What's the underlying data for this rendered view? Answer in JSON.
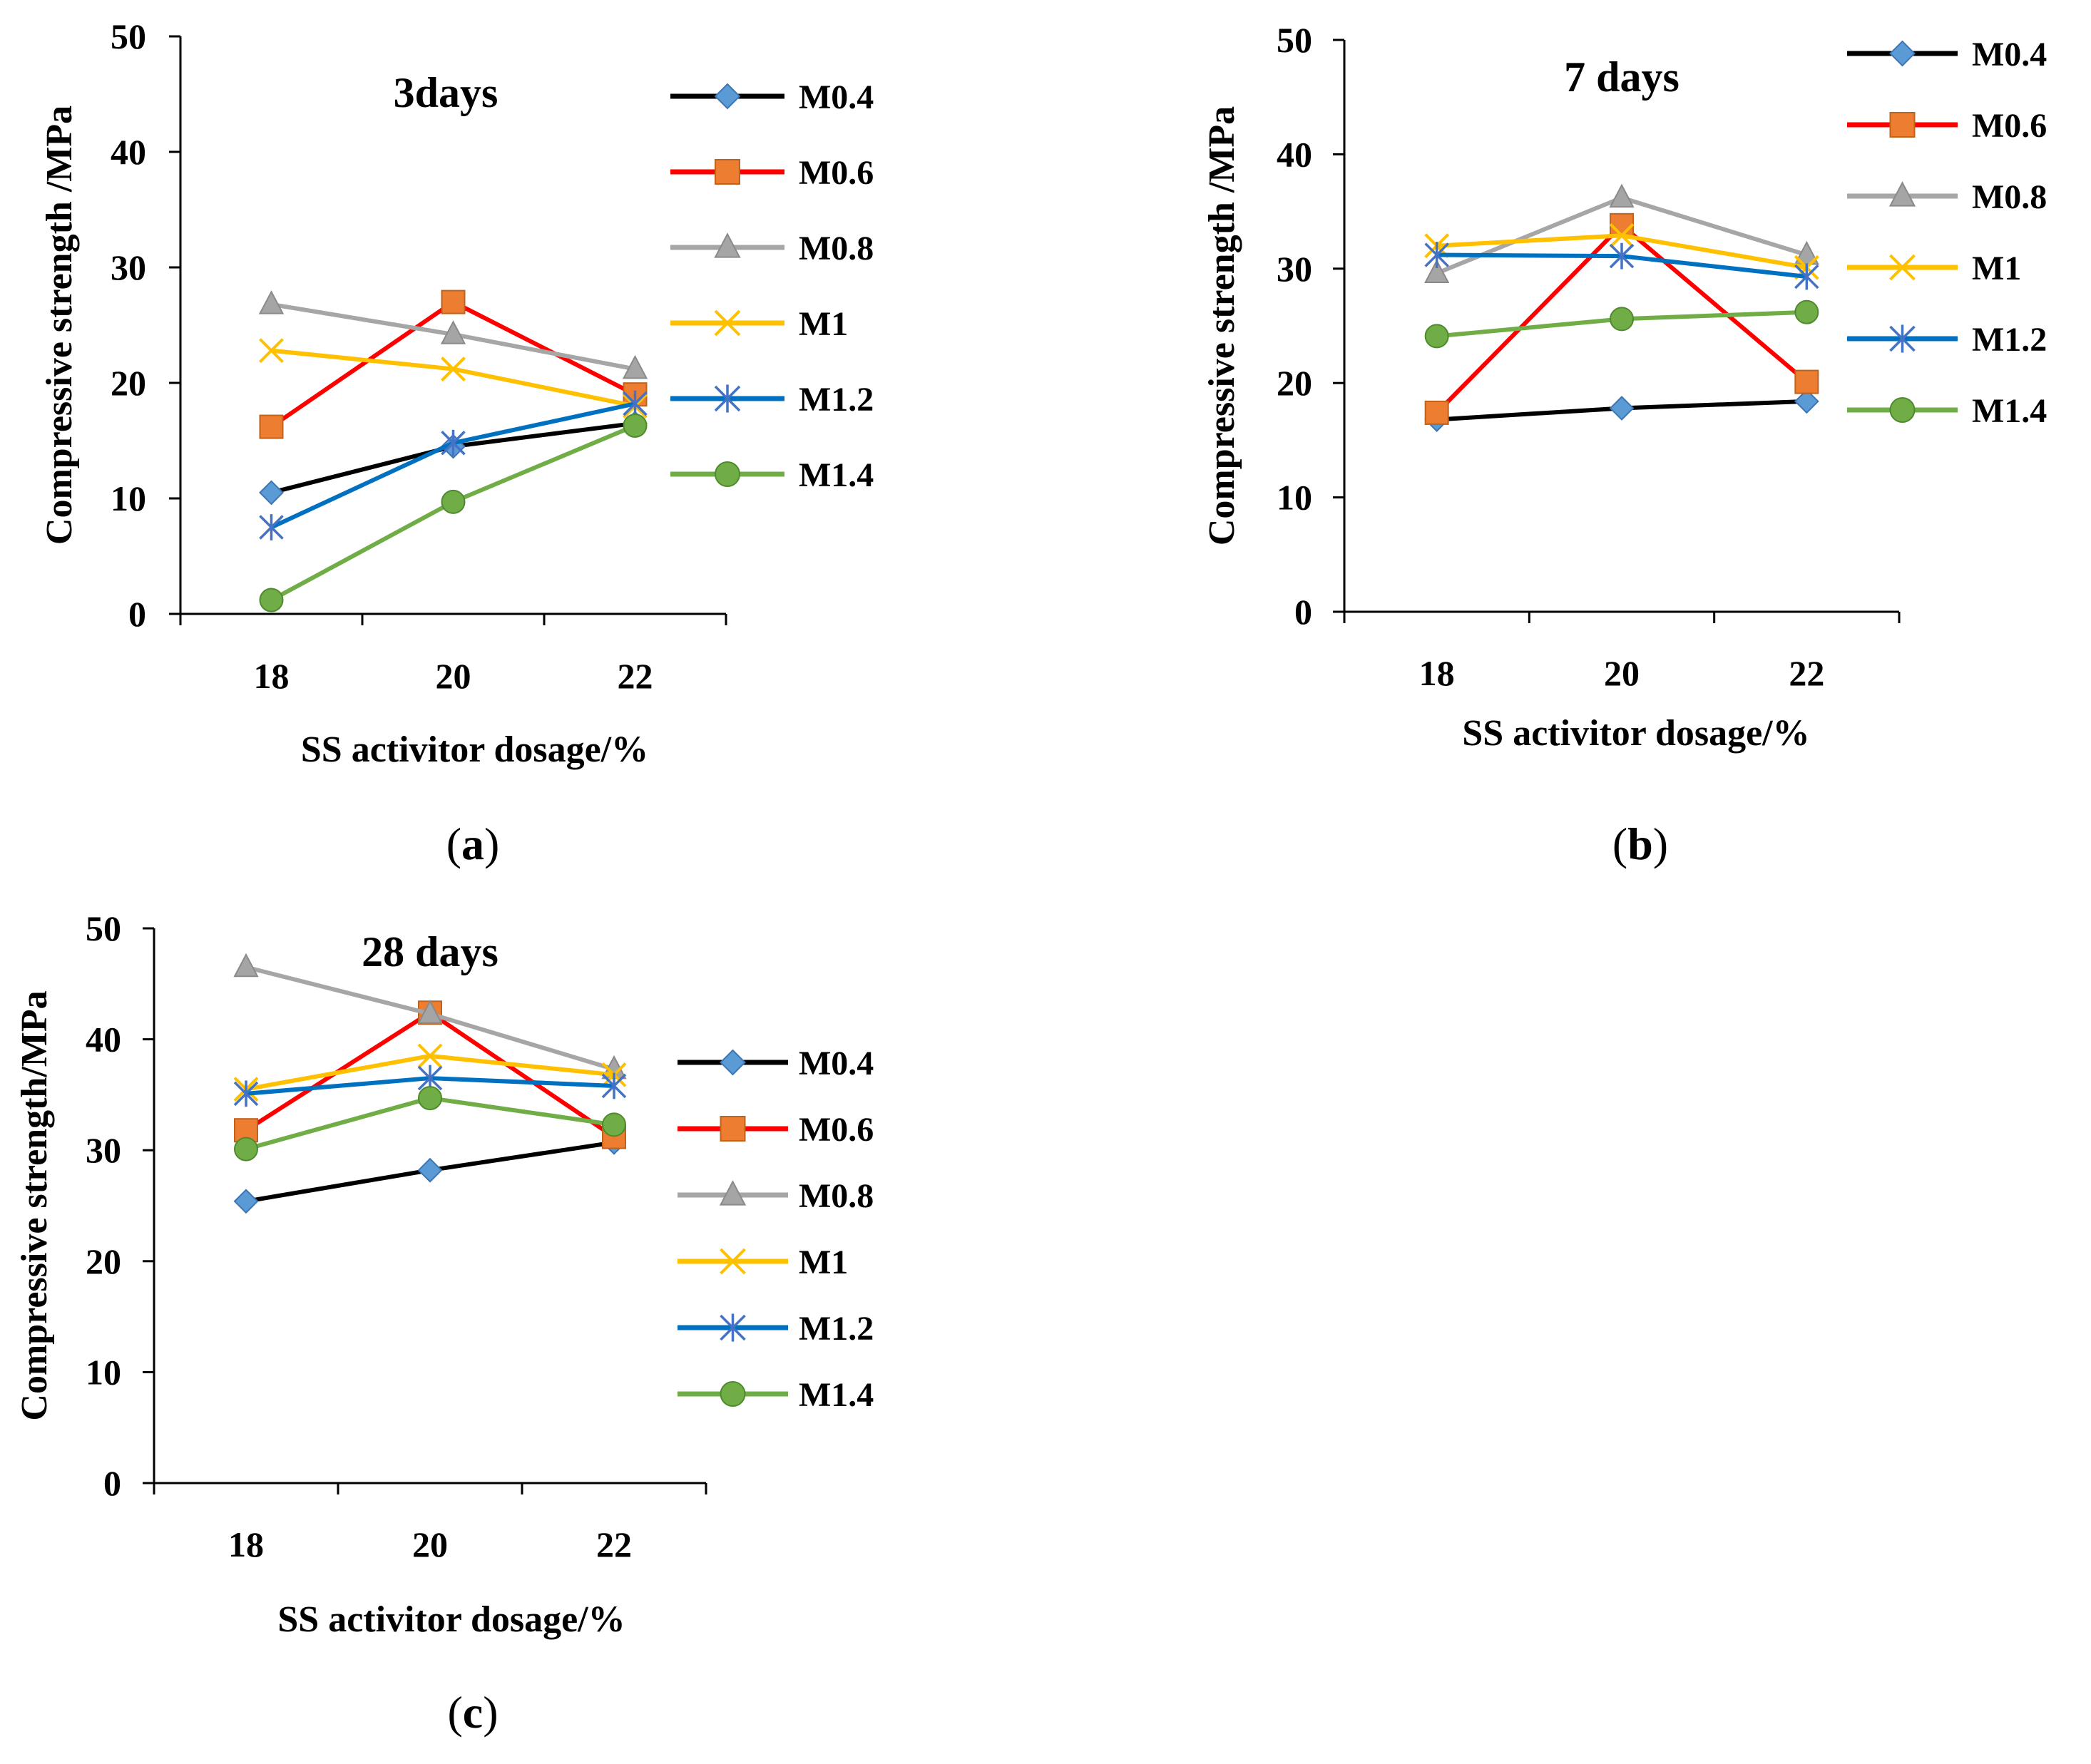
{
  "figure": {
    "panel_labels": [
      "a",
      "b",
      "c"
    ]
  },
  "legend_series": [
    "M0.4",
    "M0.6",
    "M0.8",
    "M1",
    "M1.2",
    "M1.4"
  ],
  "series_colors": {
    "M0.4": "#000000",
    "M0.6": "#ff0000",
    "M0.8": "#a6a6a6",
    "M1": "#ffc000",
    "M1.2": "#0070c0",
    "M1.4": "#70ad47"
  },
  "series_markers": {
    "M0.4": "diamond",
    "M0.6": "square",
    "M0.8": "triangle",
    "M1": "x",
    "M1.2": "star",
    "M1.4": "circle"
  },
  "marker_colors": {
    "diamond": "#5b9bd5",
    "square": "#ed7d31",
    "triangle": "#a5a5a5",
    "x": "#ffc000",
    "star": "#4472c4",
    "circle": "#70ad47"
  },
  "chart_data": [
    {
      "type": "line",
      "title": "3days",
      "xlabel": "SS activitor dosage/%",
      "ylabel": "Compressive strength /MPa",
      "categories": [
        "18",
        "20",
        "22"
      ],
      "ylim": [
        0,
        50
      ],
      "yticks": [
        0,
        10,
        20,
        30,
        40,
        50
      ],
      "legend_position": "right",
      "series": [
        {
          "name": "M0.4",
          "values": [
            10.5,
            14.5,
            16.5
          ]
        },
        {
          "name": "M0.6",
          "values": [
            16.2,
            27.0,
            19.0
          ]
        },
        {
          "name": "M0.8",
          "values": [
            26.8,
            24.2,
            21.2
          ]
        },
        {
          "name": "M1",
          "values": [
            22.8,
            21.2,
            18.0
          ]
        },
        {
          "name": "M1.2",
          "values": [
            7.5,
            14.8,
            18.2
          ]
        },
        {
          "name": "M1.4",
          "values": [
            1.2,
            9.7,
            16.3
          ]
        }
      ]
    },
    {
      "type": "line",
      "title": "7 days",
      "xlabel": "SS activitor dosage/%",
      "ylabel": "Compressive strength /MPa",
      "categories": [
        "18",
        "20",
        "22"
      ],
      "ylim": [
        0,
        50
      ],
      "yticks": [
        0,
        10,
        20,
        30,
        40,
        50
      ],
      "legend_position": "right",
      "series": [
        {
          "name": "M0.4",
          "values": [
            16.8,
            17.8,
            18.4
          ]
        },
        {
          "name": "M0.6",
          "values": [
            17.4,
            33.8,
            20.1
          ]
        },
        {
          "name": "M0.8",
          "values": [
            29.6,
            36.2,
            31.2
          ]
        },
        {
          "name": "M1",
          "values": [
            32.0,
            32.9,
            30.1
          ]
        },
        {
          "name": "M1.2",
          "values": [
            31.2,
            31.1,
            29.3
          ]
        },
        {
          "name": "M1.4",
          "values": [
            24.1,
            25.6,
            26.2
          ]
        }
      ]
    },
    {
      "type": "line",
      "title": "28 days",
      "xlabel": "SS activitor dosage/%",
      "ylabel": "Compressive strength/MPa",
      "categories": [
        "18",
        "20",
        "22"
      ],
      "ylim": [
        0,
        50
      ],
      "yticks": [
        0,
        10,
        20,
        30,
        40,
        50
      ],
      "legend_position": "right",
      "series": [
        {
          "name": "M0.4",
          "values": [
            25.4,
            28.2,
            30.7
          ]
        },
        {
          "name": "M0.6",
          "values": [
            31.8,
            42.4,
            31.2
          ]
        },
        {
          "name": "M0.8",
          "values": [
            46.5,
            42.3,
            37.3
          ]
        },
        {
          "name": "M1",
          "values": [
            35.5,
            38.5,
            36.8
          ]
        },
        {
          "name": "M1.2",
          "values": [
            35.1,
            36.5,
            35.8
          ]
        },
        {
          "name": "M1.4",
          "values": [
            30.1,
            34.7,
            32.3
          ]
        }
      ]
    }
  ]
}
